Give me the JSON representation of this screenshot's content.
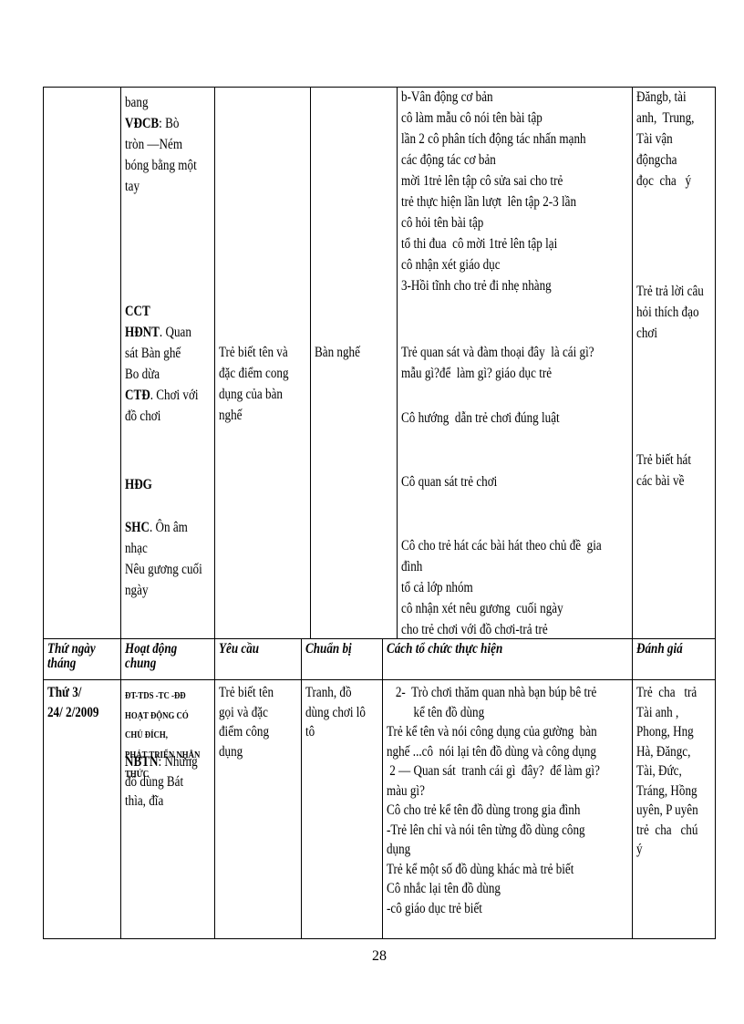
{
  "table": {
    "rows": [
      {
        "cells": [
          {
            "blocks": []
          },
          {
            "blocks": [
              {
                "lines": [
                  "bang",
                  [
                    "VĐCB",
                    ": Bò"
                  ],
                  "tròn —Ném",
                  "bóng bằng một",
                  "tay"
                ]
              },
              {
                "lines": [
                  [
                    "CCT",
                    ""
                  ],
                  [
                    "HĐNT",
                    ". Quan"
                  ],
                  "sát Bàn ghế",
                  "Bo dừa",
                  [
                    "CTĐ",
                    ". Chơi với"
                  ],
                  "đồ chơi"
                ]
              },
              {
                "lines": [
                  [
                    "HĐG",
                    ""
                  ]
                ]
              },
              {
                "lines": [
                  [
                    "SHC",
                    ". Ôn âm"
                  ],
                  "nhạc",
                  "Nêu gương cuối",
                  "ngày"
                ]
              }
            ]
          },
          {
            "blocks": [
              {
                "lines": [
                  "Trẻ biết tên và",
                  "đặc điểm cong",
                  "dụng của bàn",
                  "nghế"
                ]
              }
            ]
          },
          {
            "blocks": [
              {
                "lines": [
                  "Bàn nghế"
                ]
              }
            ]
          },
          {
            "blocks": [
              {
                "lines": [
                  "b-Vân động cơ bản",
                  "cô làm mẫu cô nói tên bài tập",
                  "lần 2 cô phân tích động tác nhấn mạnh",
                  "các động tác cơ bản",
                  "mời 1trẻ lên tập cô sửa sai cho trẻ",
                  "trẻ thực hiện lần lượt  lên tập 2-3 lần",
                  "cô hỏi tên bài tập",
                  "tổ thi đua  cô mời 1trẻ lên tập lại",
                  "cô nhận xét giáo dục",
                  "3-Hồi tĩnh cho trẻ đi nhẹ nhàng"
                ]
              },
              {
                "lines": [
                  "Trẻ quan sát và đàm thoại đây  là cái gì?",
                  "mẫu gì?để  làm gì? giáo dục trẻ"
                ]
              },
              {
                "lines": [
                  "Cô hướng  dẫn trẻ chơi đúng luật"
                ]
              },
              {
                "lines": [
                  "Cô quan sát trẻ chơi"
                ]
              },
              {
                "lines": [
                  "Cô cho trẻ hát các bài hát theo chủ đề  gia",
                  "đình",
                  "tổ cả lớp nhóm",
                  "cô nhận xét nêu gương  cuối ngày",
                  "cho trẻ chơi với đồ chơi-trả trẻ"
                ]
              }
            ]
          },
          {
            "blocks": [
              {
                "lines": [
                  "Đăngb, tài",
                  "anh,  Trung,",
                  "Tài vận",
                  "độngcha",
                  "đọc  cha   ý"
                ]
              },
              {
                "lines": [
                  "Trẻ trả lời câu",
                  "hỏi thích đạo",
                  "chơi"
                ]
              },
              {
                "lines": [
                  "Trẻ biết hát",
                  "các bài về"
                ]
              }
            ]
          }
        ]
      },
      {
        "cells": [
          {
            "blocks": [
              {
                "lines": [
                  "Thứ ngày",
                  "tháng"
                ]
              }
            ]
          },
          {
            "blocks": [
              {
                "lines": [
                  "Hoạt động",
                  "chung"
                ]
              }
            ]
          },
          {
            "blocks": [
              {
                "lines": [
                  "Yêu cầu"
                ]
              }
            ]
          },
          {
            "blocks": [
              {
                "lines": [
                  "Chuẩn bị"
                ]
              }
            ]
          },
          {
            "blocks": [
              {
                "lines": [
                  "Cách tổ chức thực hiện"
                ]
              }
            ]
          },
          {
            "blocks": [
              {
                "lines": [
                  "Đánh giá"
                ]
              }
            ]
          }
        ]
      },
      {
        "cells": [
          {
            "blocks": [
              {
                "lines": [
                  [
                    "Thứ 3/",
                    ""
                  ],
                  [
                    "24/ 2/2009",
                    ""
                  ]
                ]
              }
            ]
          },
          {
            "blocks": [
              {
                "lines": [
                  "ĐT-TDS -TC -ĐĐ",
                  "HOẠT ĐỘNG CÓ",
                  "CHỦ ĐÍCH,",
                  "PHÁT TRIỂN NHẬN",
                  "THỨC"
                ]
              },
              {
                "lines": [
                  [
                    "NBTN",
                    ": Những"
                  ],
                  "đồ dùng Bát",
                  "thìa, đĩa"
                ]
              }
            ]
          },
          {
            "blocks": [
              {
                "lines": [
                  "Trẻ biết tên",
                  "gọi và đặc",
                  "điểm công",
                  "dụng"
                ]
              }
            ]
          },
          {
            "blocks": [
              {
                "lines": [
                  "Tranh, đồ",
                  "dùng chơi lô",
                  "tô"
                ]
              }
            ]
          },
          {
            "blocks": [
              {
                "lines": [
                  "   2-  Trò chơi thăm quan nhà bạn búp bê trẻ",
                  "         kể tên đồ dùng",
                  "Trẻ kể tên và nói công dụng của gường  bàn",
                  "nghế ...cô  nói lại tên đồ dùng và công dụng",
                  " 2 — Quan sát  tranh cái gì  đây?  để làm gì?",
                  "màu gì?",
                  "Cô cho trẻ kể tên đồ dùng trong gia đình",
                  "-Trẻ lên chỉ và nói tên từng đồ dùng công",
                  "dụng",
                  "Trẻ kể một số đồ dùng khác mà trẻ biết",
                  "Cô nhắc lại tên đồ dùng",
                  "-cô giáo dục trẻ biết"
                ]
              }
            ]
          },
          {
            "blocks": [
              {
                "lines": [
                  "Trẻ  cha   trả",
                  "Tài anh ,",
                  "Phong, Hng",
                  "Hà, Đăngc,",
                  "Tài, Đức,",
                  "Tráng, Hồng",
                  "uyên, P uyên",
                  "trẻ  cha   chú",
                  "ý"
                ]
              }
            ]
          }
        ]
      }
    ]
  },
  "page_number": "28"
}
